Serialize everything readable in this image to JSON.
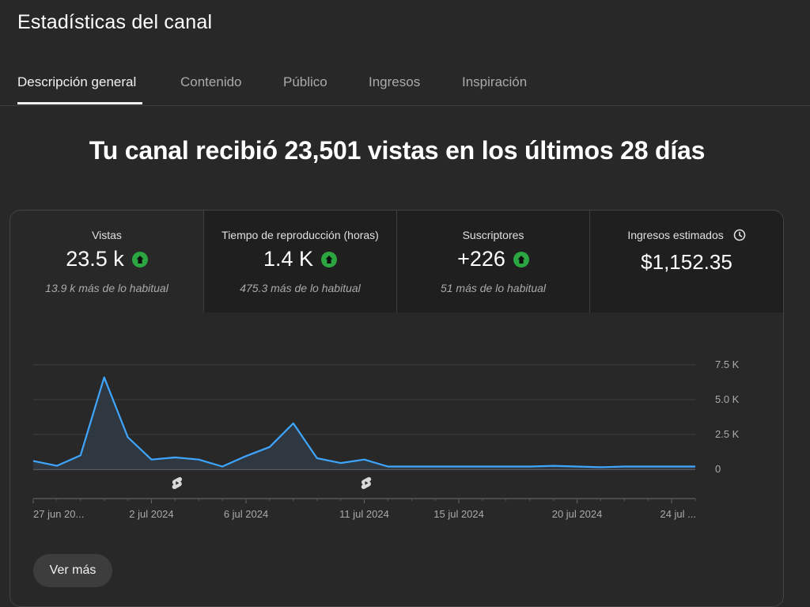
{
  "page": {
    "title": "Estadísticas del canal"
  },
  "tabs": [
    {
      "label": "Descripción general",
      "active": true
    },
    {
      "label": "Contenido"
    },
    {
      "label": "Público"
    },
    {
      "label": "Ingresos"
    },
    {
      "label": "Inspiración"
    }
  ],
  "headline": "Tu canal recibió 23,501 vistas en los últimos 28 días",
  "metrics": [
    {
      "label": "Vistas",
      "value": "23.5 k",
      "trend": "up",
      "sub": "13.9 k más de lo habitual"
    },
    {
      "label": "Tiempo de reproducción (horas)",
      "value": "1.4 K",
      "trend": "up",
      "sub": "475.3 más de lo habitual"
    },
    {
      "label": "Suscriptores",
      "value": "+226",
      "trend": "up",
      "sub": "51 más de lo habitual"
    },
    {
      "label": "Ingresos estimados",
      "value": "$1,152.35",
      "icon": "clock-icon"
    }
  ],
  "colors": {
    "line": "#3ea6ff",
    "up": "#2ba640"
  },
  "chart_data": {
    "type": "line",
    "y_ticks": [
      "7.5 K",
      "5.0 K",
      "2.5 K",
      "0"
    ],
    "ylim": [
      0,
      7500
    ],
    "x_tick_labels": [
      {
        "day": 0,
        "label": "27 jun 20..."
      },
      {
        "day": 5,
        "label": "2 jul 2024"
      },
      {
        "day": 9,
        "label": "6 jul 2024"
      },
      {
        "day": 14,
        "label": "11 jul 2024"
      },
      {
        "day": 18,
        "label": "15 jul 2024"
      },
      {
        "day": 23,
        "label": "20 jul 2024"
      },
      {
        "day": 27,
        "label": "24 jul ..."
      }
    ],
    "series": [
      {
        "values": [
          600,
          250,
          1000,
          6600,
          2300,
          700,
          850,
          700,
          200,
          950,
          1600,
          3300,
          800,
          450,
          700,
          200,
          200,
          200,
          200,
          200,
          200,
          200,
          250,
          200,
          150,
          200,
          200,
          200,
          200
        ]
      }
    ],
    "shorts_marker_days": [
      6,
      14
    ]
  },
  "buttons": {
    "see_more": "Ver más"
  }
}
